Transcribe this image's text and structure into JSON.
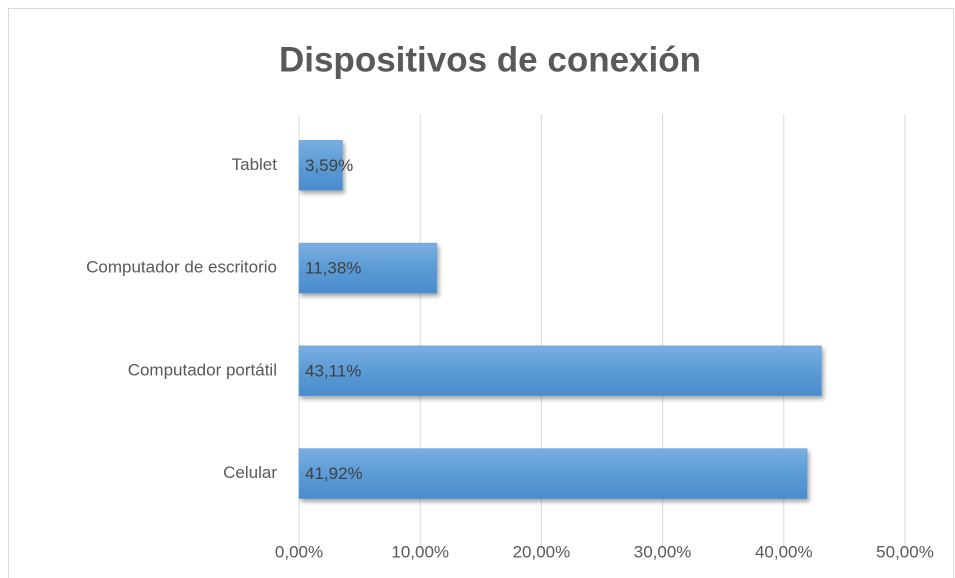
{
  "chart_data": {
    "type": "bar",
    "orientation": "horizontal",
    "title": "Dispositivos de conexión",
    "categories": [
      "Celular",
      "Computador portátil",
      "Computador de escritorio",
      "Tablet"
    ],
    "values": [
      41.92,
      43.11,
      11.38,
      3.59
    ],
    "value_labels": [
      "41,92%",
      "43,11%",
      "11,38%",
      "3,59%"
    ],
    "color": "#5b9bd5",
    "xlim": [
      0,
      50
    ],
    "xticks": [
      {
        "value": 0,
        "label": "0,00%"
      },
      {
        "value": 10,
        "label": "10,00%"
      },
      {
        "value": 20,
        "label": "20,00%"
      },
      {
        "value": 30,
        "label": "30,00%"
      },
      {
        "value": 40,
        "label": "40,00%"
      },
      {
        "value": 50,
        "label": "50,00%"
      }
    ],
    "grid": true
  }
}
